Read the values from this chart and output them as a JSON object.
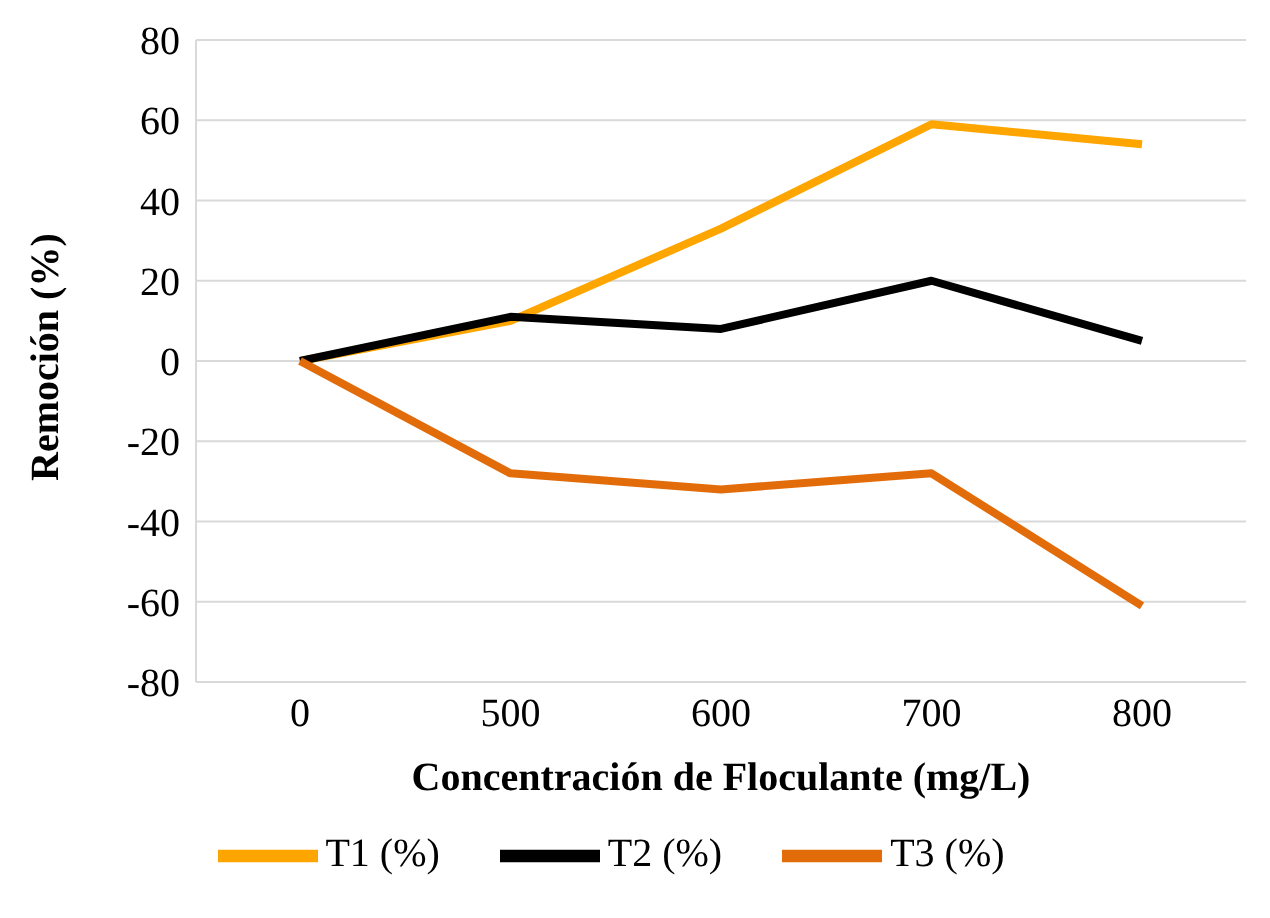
{
  "chart_data": {
    "type": "line",
    "xlabel": "Concentración de Floculante (mg/L)",
    "ylabel": "Remoción (%)",
    "categories": [
      "0",
      "500",
      "600",
      "700",
      "800"
    ],
    "series": [
      {
        "name": "T1 (%)",
        "color": "#ffa500",
        "values": [
          0,
          10,
          33,
          59,
          54
        ]
      },
      {
        "name": "T2 (%)",
        "color": "#000000",
        "values": [
          0,
          11,
          8,
          20,
          5
        ]
      },
      {
        "name": "T3 (%)",
        "color": "#e36c0a",
        "values": [
          0,
          -28,
          -32,
          -28,
          -61
        ]
      }
    ],
    "ylim": [
      -80,
      80
    ],
    "yticks": [
      -80,
      -60,
      -40,
      -20,
      0,
      20,
      40,
      60,
      80
    ],
    "grid": "y",
    "legend": "bottom",
    "marker": "none",
    "line_style": "solid"
  }
}
